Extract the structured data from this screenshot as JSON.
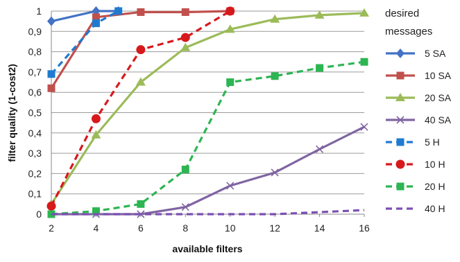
{
  "chart_data": {
    "type": "line",
    "xlabel": "available filters",
    "ylabel": "filter quality (1-cost2)",
    "xlim": [
      2,
      16
    ],
    "ylim": [
      0,
      1
    ],
    "x_ticks": [
      "2",
      "4",
      "6",
      "8",
      "10",
      "12",
      "14",
      "16"
    ],
    "y_ticks": [
      "0",
      "0,1",
      "0,2",
      "0,3",
      "0,4",
      "0,5",
      "0,6",
      "0,7",
      "0,8",
      "0,9",
      "1"
    ],
    "grid": true,
    "legend_position": "right",
    "legend_title": "desired messages",
    "legend_title_lines": [
      "desired",
      "messages"
    ],
    "series": [
      {
        "name": "5 SA",
        "color": "#4472C4",
        "dash": "solid",
        "marker": "diamond",
        "x": [
          2,
          4,
          5
        ],
        "values": [
          0.95,
          1.0,
          1.0
        ]
      },
      {
        "name": "10 SA",
        "color": "#C0504D",
        "dash": "solid",
        "marker": "square",
        "x": [
          2,
          4,
          6,
          8,
          10
        ],
        "values": [
          0.62,
          0.97,
          0.995,
          0.995,
          1.0
        ]
      },
      {
        "name": "20 SA",
        "color": "#9BBB59",
        "dash": "solid",
        "marker": "triangle",
        "x": [
          2,
          4,
          6,
          8,
          10,
          12,
          14,
          16
        ],
        "values": [
          0.05,
          0.39,
          0.65,
          0.82,
          0.91,
          0.96,
          0.98,
          0.99
        ]
      },
      {
        "name": "40 SA",
        "color": "#8064A2",
        "dash": "solid",
        "marker": "x",
        "x": [
          2,
          4,
          6,
          8,
          10,
          12,
          14,
          16
        ],
        "values": [
          0.0,
          0.0,
          0.0,
          0.035,
          0.14,
          0.205,
          0.32,
          0.43
        ]
      },
      {
        "name": "5 H",
        "color": "#1F7BD0",
        "dash": "dashed",
        "marker": "square",
        "x": [
          2,
          4,
          5
        ],
        "values": [
          0.69,
          0.94,
          1.0
        ]
      },
      {
        "name": "10 H",
        "color": "#D7191C",
        "dash": "dashed",
        "marker": "circle",
        "x": [
          2,
          4,
          6,
          8,
          10
        ],
        "values": [
          0.04,
          0.47,
          0.81,
          0.87,
          1.0
        ]
      },
      {
        "name": "20 H",
        "color": "#2DB553",
        "dash": "dashed",
        "marker": "square",
        "x": [
          2,
          4,
          6,
          8,
          10,
          12,
          14,
          16
        ],
        "values": [
          0.0,
          0.015,
          0.05,
          0.22,
          0.65,
          0.68,
          0.72,
          0.75
        ]
      },
      {
        "name": "40 H",
        "color": "#7B4FB3",
        "dash": "dashed",
        "marker": "none",
        "x": [
          2,
          4,
          6,
          8,
          10,
          12,
          14,
          16
        ],
        "values": [
          0.0,
          0.0,
          0.0,
          0.0,
          0.0,
          0.0,
          0.01,
          0.02
        ]
      }
    ]
  }
}
